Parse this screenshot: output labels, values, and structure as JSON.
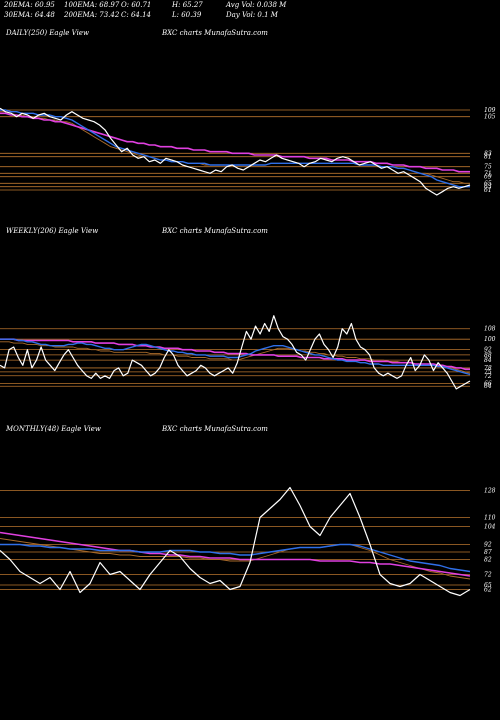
{
  "header": {
    "row1": [
      "20EMA: 60.95",
      "100EMA: 68.97",
      "O: 60.71",
      "H: 65.27",
      "Avg Vol: 0.038  M"
    ],
    "row2": [
      "30EMA: 64.48",
      "200EMA: 73.42",
      "C: 64.14",
      "L: 60.39",
      "Day Vol: 0.1  M"
    ]
  },
  "colors": {
    "price": "#ffffff",
    "ema_blue": "#2f6fe8",
    "ema_magenta": "#e040e0",
    "ema_brown": "#a86a2a",
    "level_lines": "#b8742e"
  },
  "chart_data": [
    {
      "type": "line",
      "title": "DAILY(250) Eagle  View",
      "subtitle": "BXC charts MunafaSutra.com",
      "ylim": [
        55,
        115
      ],
      "y_tick_labels": [
        "109",
        "105",
        "83",
        "81",
        "75",
        "71",
        "69",
        "65",
        "63",
        "61"
      ],
      "levels": [
        109,
        105,
        83,
        81,
        75,
        71,
        69,
        65,
        63,
        61
      ],
      "series": [
        {
          "role": "price",
          "values": [
            110,
            108,
            107,
            105,
            107,
            106,
            104,
            106,
            107,
            105,
            104,
            103,
            106,
            108,
            106,
            104,
            103,
            102,
            100,
            97,
            92,
            88,
            84,
            86,
            82,
            80,
            81,
            78,
            79,
            77,
            80,
            79,
            78,
            76,
            75,
            74,
            73,
            72,
            71,
            73,
            72,
            75,
            76,
            74,
            73,
            75,
            77,
            79,
            78,
            80,
            82,
            80,
            79,
            78,
            77,
            75,
            77,
            78,
            80,
            79,
            78,
            80,
            81,
            80,
            78,
            76,
            77,
            78,
            76,
            74,
            75,
            73,
            71,
            72,
            70,
            68,
            66,
            62,
            60,
            58,
            60,
            62,
            63,
            62,
            63,
            64
          ]
        },
        {
          "role": "ema_blue",
          "values": [
            109,
            109,
            108,
            108,
            107,
            107,
            107,
            106,
            106,
            106,
            105,
            105,
            104,
            103,
            101,
            99,
            97,
            95,
            93,
            91,
            89,
            87,
            86,
            85,
            84,
            83,
            82,
            81,
            80,
            79,
            79,
            78,
            78,
            78,
            77,
            77,
            77,
            77,
            76,
            76,
            76,
            76,
            76,
            76,
            76,
            76,
            76,
            76,
            76,
            77,
            77,
            77,
            77,
            77,
            77,
            77,
            77,
            77,
            77,
            77,
            77,
            77,
            77,
            77,
            77,
            76,
            76,
            76,
            76,
            75,
            75,
            75,
            74,
            74,
            73,
            72,
            71,
            70,
            69,
            67,
            66,
            65,
            64,
            63,
            63,
            63
          ]
        },
        {
          "role": "ema_magenta",
          "values": [
            107,
            107,
            106,
            106,
            105,
            105,
            104,
            104,
            103,
            103,
            102,
            102,
            101,
            100,
            99,
            98,
            97,
            96,
            95,
            94,
            93,
            92,
            91,
            90,
            90,
            89,
            89,
            88,
            88,
            87,
            87,
            87,
            86,
            86,
            86,
            85,
            85,
            85,
            84,
            84,
            84,
            84,
            83,
            83,
            83,
            83,
            82,
            82,
            82,
            82,
            82,
            81,
            81,
            81,
            81,
            81,
            80,
            80,
            80,
            80,
            79,
            79,
            79,
            79,
            78,
            78,
            78,
            78,
            77,
            77,
            77,
            76,
            76,
            76,
            75,
            75,
            75,
            74,
            74,
            74,
            73,
            73,
            73,
            72,
            72,
            72
          ]
        },
        {
          "role": "ema_brown",
          "values": [
            108,
            108,
            107,
            106,
            106,
            105,
            105,
            104,
            104,
            103,
            103,
            102,
            102,
            101,
            99,
            97,
            95,
            93,
            91,
            89,
            87,
            86,
            85,
            84,
            83,
            82,
            81,
            81,
            80,
            79,
            79,
            78,
            78,
            78,
            77,
            77,
            77,
            76,
            76,
            76,
            76,
            76,
            76,
            76,
            76,
            76,
            76,
            76,
            76,
            77,
            77,
            77,
            77,
            77,
            77,
            77,
            77,
            77,
            77,
            77,
            77,
            77,
            77,
            77,
            77,
            76,
            76,
            76,
            76,
            75,
            75,
            75,
            74,
            74,
            73,
            72,
            71,
            71,
            70,
            69,
            68,
            67,
            66,
            66,
            65,
            65
          ]
        }
      ]
    },
    {
      "type": "line",
      "title": "WEEKLY(206) Eagle  View",
      "subtitle": "BXC charts MunafaSutra.com",
      "ylim": [
        55,
        130
      ],
      "y_tick_labels": [
        "108",
        "100",
        "92",
        "88",
        "84",
        "78",
        "75",
        "72",
        "66",
        "64"
      ],
      "levels": [
        108,
        100,
        92,
        88,
        84,
        78,
        75,
        72,
        66,
        64
      ],
      "series": [
        {
          "role": "price",
          "values": [
            80,
            78,
            92,
            94,
            86,
            80,
            92,
            78,
            84,
            94,
            84,
            80,
            76,
            82,
            88,
            92,
            86,
            80,
            76,
            72,
            70,
            74,
            70,
            72,
            70,
            76,
            78,
            72,
            74,
            84,
            82,
            80,
            76,
            72,
            74,
            78,
            86,
            92,
            88,
            80,
            76,
            72,
            74,
            76,
            80,
            78,
            74,
            72,
            74,
            76,
            78,
            74,
            82,
            94,
            106,
            100,
            110,
            104,
            112,
            106,
            118,
            108,
            102,
            100,
            96,
            90,
            88,
            84,
            92,
            100,
            104,
            96,
            92,
            86,
            94,
            108,
            104,
            112,
            100,
            94,
            92,
            88,
            78,
            74,
            72,
            74,
            72,
            70,
            72,
            80,
            86,
            76,
            80,
            88,
            84,
            76,
            82,
            78,
            74,
            68,
            62,
            64,
            66,
            68
          ]
        },
        {
          "role": "ema_blue",
          "values": [
            100,
            100,
            100,
            100,
            99,
            99,
            98,
            98,
            97,
            96,
            96,
            95,
            95,
            95,
            95,
            96,
            96,
            97,
            97,
            96,
            96,
            95,
            94,
            93,
            93,
            92,
            92,
            92,
            93,
            94,
            95,
            96,
            96,
            95,
            94,
            93,
            92,
            91,
            91,
            90,
            90,
            89,
            89,
            88,
            88,
            88,
            87,
            87,
            87,
            87,
            86,
            86,
            86,
            87,
            88,
            89,
            91,
            92,
            93,
            94,
            95,
            95,
            95,
            94,
            93,
            92,
            91,
            90,
            89,
            88,
            88,
            87,
            86,
            85,
            84,
            84,
            83,
            83,
            83,
            82,
            82,
            81,
            81,
            81,
            80,
            80,
            80,
            80,
            80,
            80,
            80,
            80,
            80,
            80,
            80,
            80,
            79,
            79,
            78,
            77,
            76,
            75,
            74,
            73
          ]
        },
        {
          "role": "ema_magenta",
          "values": [
            100,
            100,
            100,
            100,
            99,
            99,
            99,
            99,
            99,
            99,
            99,
            99,
            99,
            99,
            99,
            99,
            98,
            98,
            98,
            98,
            98,
            97,
            97,
            97,
            97,
            97,
            96,
            96,
            96,
            96,
            95,
            95,
            95,
            94,
            94,
            94,
            93,
            93,
            93,
            93,
            92,
            92,
            92,
            91,
            91,
            91,
            91,
            90,
            90,
            90,
            89,
            89,
            89,
            89,
            89,
            88,
            88,
            88,
            88,
            88,
            88,
            87,
            87,
            87,
            87,
            87,
            86,
            86,
            86,
            86,
            86,
            85,
            85,
            85,
            85,
            85,
            84,
            84,
            84,
            84,
            84,
            83,
            83,
            83,
            83,
            83,
            82,
            82,
            82,
            82,
            82,
            81,
            81,
            81,
            81,
            81,
            80,
            80,
            79,
            79,
            78,
            78,
            77,
            77
          ]
        },
        {
          "role": "ema_brown",
          "values": [
            98,
            98,
            98,
            97,
            97,
            97,
            96,
            96,
            96,
            95,
            95,
            95,
            94,
            94,
            94,
            94,
            94,
            93,
            93,
            93,
            92,
            92,
            91,
            91,
            91,
            90,
            90,
            90,
            90,
            90,
            90,
            90,
            90,
            89,
            89,
            89,
            88,
            88,
            88,
            87,
            87,
            87,
            86,
            86,
            86,
            86,
            85,
            85,
            85,
            85,
            85,
            84,
            84,
            85,
            86,
            87,
            88,
            89,
            90,
            91,
            92,
            93,
            93,
            93,
            92,
            92,
            91,
            91,
            90,
            90,
            89,
            89,
            88,
            88,
            87,
            87,
            86,
            86,
            86,
            85,
            85,
            85,
            84,
            84,
            84,
            83,
            83,
            83,
            82,
            82,
            82,
            81,
            81,
            81,
            81,
            80,
            80,
            79,
            79,
            78,
            77,
            76,
            75,
            74
          ]
        }
      ]
    },
    {
      "type": "line",
      "title": "MONTHLY(48) Eagle  View",
      "subtitle": "BXC charts MunafaSutra.com",
      "ylim": [
        55,
        135
      ],
      "y_tick_labels": [
        "128",
        "110",
        "104",
        "92",
        "87",
        "82",
        "72",
        "65",
        "62"
      ],
      "levels": [
        128,
        110,
        104,
        92,
        87,
        82,
        72,
        65,
        62
      ],
      "series": [
        {
          "role": "price",
          "values": [
            88,
            82,
            74,
            70,
            66,
            70,
            62,
            74,
            60,
            66,
            80,
            72,
            74,
            68,
            62,
            72,
            80,
            88,
            84,
            76,
            70,
            66,
            68,
            62,
            64,
            80,
            110,
            116,
            122,
            130,
            118,
            104,
            98,
            110,
            118,
            126,
            110,
            92,
            72,
            66,
            64,
            66,
            72,
            68,
            64,
            60,
            58,
            62
          ]
        },
        {
          "role": "ema_blue",
          "values": [
            92,
            92,
            92,
            91,
            91,
            90,
            90,
            89,
            89,
            89,
            88,
            88,
            88,
            88,
            87,
            87,
            87,
            88,
            88,
            88,
            87,
            87,
            86,
            86,
            85,
            85,
            86,
            87,
            88,
            89,
            90,
            90,
            90,
            91,
            92,
            92,
            91,
            89,
            87,
            85,
            83,
            81,
            80,
            79,
            78,
            76,
            75,
            74
          ]
        },
        {
          "role": "ema_magenta",
          "values": [
            100,
            99,
            98,
            97,
            96,
            95,
            94,
            93,
            92,
            91,
            90,
            89,
            88,
            88,
            87,
            86,
            86,
            85,
            85,
            84,
            84,
            83,
            83,
            83,
            82,
            82,
            82,
            82,
            82,
            82,
            82,
            82,
            81,
            81,
            81,
            81,
            80,
            80,
            79,
            79,
            78,
            77,
            76,
            75,
            74,
            73,
            72,
            71
          ]
        },
        {
          "role": "ema_brown",
          "values": [
            96,
            95,
            94,
            93,
            92,
            91,
            90,
            89,
            88,
            87,
            86,
            86,
            85,
            85,
            84,
            84,
            84,
            84,
            84,
            83,
            83,
            82,
            82,
            81,
            81,
            81,
            83,
            85,
            87,
            89,
            90,
            90,
            90,
            91,
            92,
            92,
            90,
            88,
            85,
            82,
            80,
            78,
            76,
            74,
            73,
            71,
            70,
            69
          ]
        }
      ]
    }
  ]
}
